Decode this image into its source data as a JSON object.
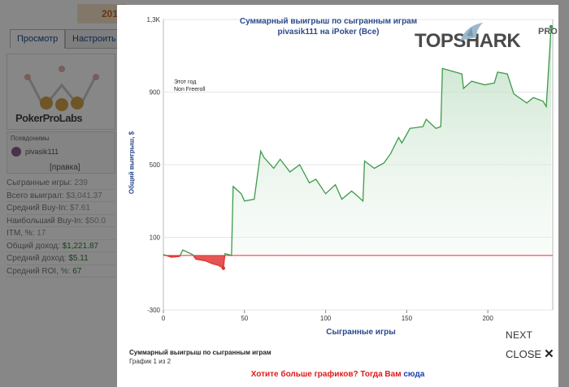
{
  "background": {
    "year_fragment": "201",
    "tabs": [
      "Просмотр",
      "Настроить"
    ],
    "logo_text": "PokerProLabs",
    "aliases_title": "Псевдонимы",
    "alias_name": "pivasik111",
    "edit_link": "[правка]",
    "stats": [
      {
        "label": "Сыгранные игры:",
        "value": "239"
      },
      {
        "label": "Всего выиграл:",
        "value": "$3,041.37"
      },
      {
        "label": "Средний Buy-In:",
        "value": "$7.61"
      },
      {
        "label": "Наибольший Buy-In:",
        "value": "$50.0"
      },
      {
        "label": "ITM, %:",
        "value": "17"
      },
      {
        "label": "Общий доход:",
        "value": "$1,221.87"
      },
      {
        "label": "Средний доход:",
        "value": "$5.11"
      },
      {
        "label": "Средний ROI, %:",
        "value": "67"
      }
    ]
  },
  "modal": {
    "title_line1": "Суммарный выигрыш по сыгранным играм",
    "title_line2": "pivasik111 на iPoker (Все)",
    "brand_text": "TOPSHARK",
    "brand_pro": "PRO",
    "annotation_line1": "Этот год",
    "annotation_line2": "Non Freeroll",
    "caption": "Суммарный выигрыш по сыгранным играм",
    "counter": "График 1 из 2",
    "next_label": "NEXT",
    "close_label": "CLOSE",
    "promo_text": "Хотите больше графиков? Тогда Вам ",
    "promo_link": "сюда"
  },
  "chart_data": {
    "type": "area",
    "title": "Суммарный выигрыш по сыгранным играм",
    "subtitle": "pivasik111 на iPoker (Все)",
    "xlabel": "Сыгранные игры",
    "ylabel": "Общий выигрыш, $",
    "xlim": [
      0,
      240
    ],
    "ylim": [
      -300,
      1300
    ],
    "x_ticks": [
      "0",
      "50",
      "100",
      "150",
      "200"
    ],
    "y_ticks": [
      "-300",
      "100",
      "500",
      "900",
      "1,3K"
    ],
    "baseline": 0,
    "colors": {
      "positive": "#3d9a4a",
      "negative": "#e03030",
      "line": "#3d9a4a"
    },
    "series": [
      {
        "x": [
          0,
          5,
          10,
          12,
          18,
          20,
          26,
          30,
          34,
          37,
          38,
          42,
          43,
          48,
          50,
          56,
          60,
          62,
          68,
          72,
          78,
          84,
          90,
          94,
          100,
          106,
          110,
          116,
          118,
          123,
          124,
          130,
          134,
          136,
          140,
          145,
          147,
          152,
          160,
          162,
          168,
          171,
          172,
          184,
          185,
          190,
          198,
          204,
          206,
          212,
          216,
          224,
          228,
          234,
          236,
          239
        ],
        "y": [
          5,
          -10,
          -5,
          30,
          5,
          -20,
          -30,
          -45,
          -55,
          -70,
          10,
          0,
          380,
          340,
          300,
          310,
          575,
          540,
          480,
          530,
          460,
          500,
          400,
          420,
          340,
          390,
          310,
          355,
          340,
          300,
          520,
          480,
          500,
          510,
          560,
          650,
          620,
          700,
          710,
          750,
          700,
          710,
          1030,
          1000,
          920,
          960,
          940,
          950,
          1010,
          1000,
          890,
          840,
          870,
          850,
          820,
          1260
        ]
      }
    ]
  }
}
